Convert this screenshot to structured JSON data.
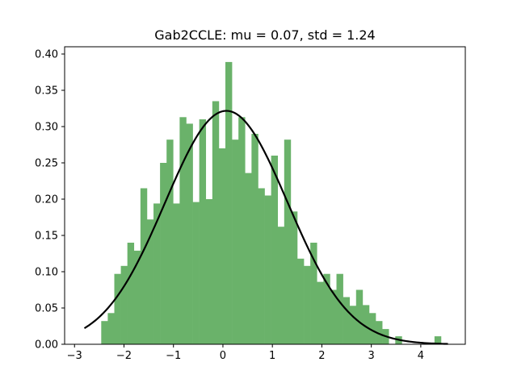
{
  "chart_data": {
    "type": "bar",
    "title": "Gab2CCLE: mu = 0.07, std = 1.24",
    "xlabel": "",
    "ylabel": "",
    "xlim": [
      -3.2,
      4.9
    ],
    "ylim": [
      0,
      0.41
    ],
    "x_ticks": [
      -3,
      -2,
      -1,
      0,
      1,
      2,
      3,
      4
    ],
    "y_ticks": [
      0.0,
      0.05,
      0.1,
      0.15,
      0.2,
      0.25,
      0.3,
      0.35,
      0.4
    ],
    "x_tick_labels": [
      "−3",
      "−2",
      "−1",
      "0",
      "1",
      "2",
      "3",
      "4"
    ],
    "y_tick_labels": [
      "0.00",
      "0.05",
      "0.10",
      "0.15",
      "0.20",
      "0.25",
      "0.30",
      "0.35",
      "0.40"
    ],
    "grid": false,
    "legend": "none",
    "histogram": {
      "color": "#6ab26a",
      "bin_start": -2.46,
      "bin_width": 0.1321,
      "values": [
        0.032,
        0.043,
        0.097,
        0.108,
        0.14,
        0.129,
        0.215,
        0.172,
        0.194,
        0.25,
        0.282,
        0.194,
        0.313,
        0.304,
        0.196,
        0.31,
        0.2,
        0.335,
        0.27,
        0.389,
        0.282,
        0.313,
        0.236,
        0.29,
        0.215,
        0.205,
        0.26,
        0.162,
        0.282,
        0.183,
        0.118,
        0.108,
        0.14,
        0.086,
        0.097,
        0.075,
        0.097,
        0.065,
        0.053,
        0.075,
        0.054,
        0.043,
        0.032,
        0.021,
        0.0,
        0.011,
        0.0,
        0.0,
        0.0,
        0.0,
        0.0,
        0.011
      ]
    },
    "fit_curve": {
      "type": "normal_pdf",
      "mu": 0.07,
      "std": 1.24,
      "x_range": [
        -2.8,
        4.55
      ],
      "color": "#000000"
    }
  }
}
